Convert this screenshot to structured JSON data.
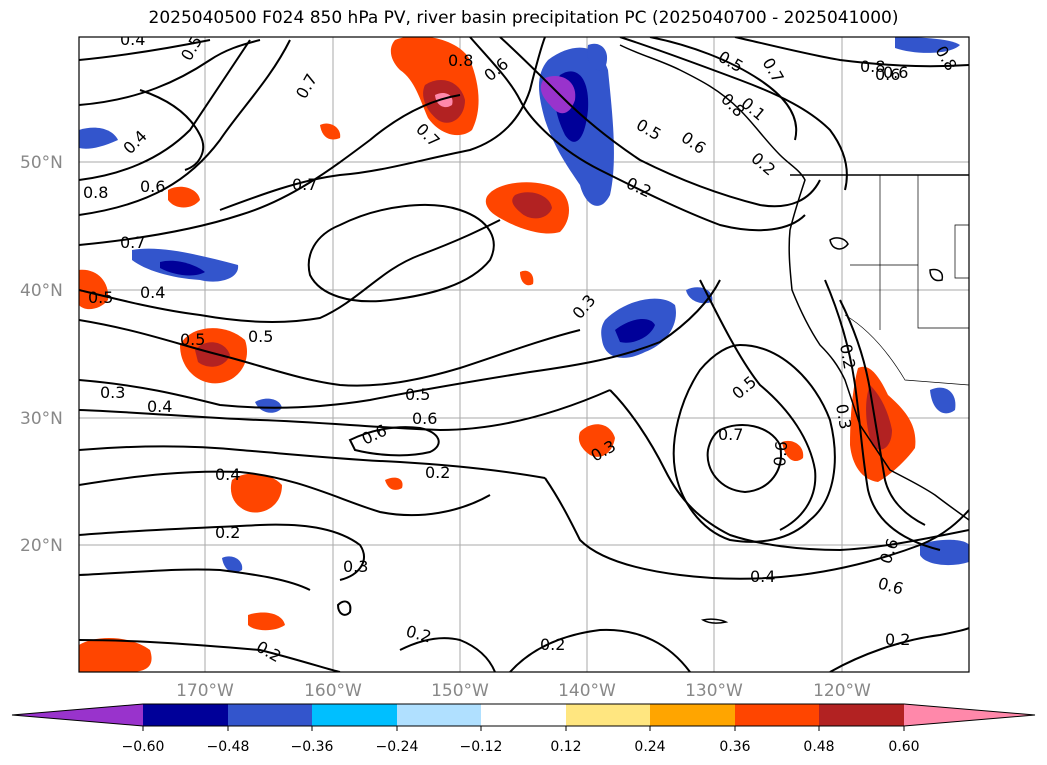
{
  "title": "2025040500 F024 850 hPa PV, river basin precipitation PC (2025040700 - 2025041000)",
  "map": {
    "lat_labels": [
      "50°N",
      "40°N",
      "30°N",
      "20°N"
    ],
    "lon_labels": [
      "170°W",
      "160°W",
      "150°W",
      "140°W",
      "130°W",
      "120°W"
    ],
    "contour_labels": [
      "0.4",
      "0.5",
      "0.4",
      "0.6",
      "0.8",
      "0.7",
      "0.5",
      "0.4",
      "0.5",
      "0.3",
      "0.4",
      "0.8",
      "0.7",
      "0.6",
      "0.7",
      "0.5",
      "0.6",
      "0.6",
      "0.2",
      "0.2",
      "0.3",
      "0.4",
      "0.2",
      "0.3",
      "0.2",
      "0.2",
      "0.5",
      "0.6",
      "0.6",
      "0.5",
      "0.8",
      "0.1",
      "0.7",
      "0.8",
      "0.6",
      "0.5",
      "0.2",
      "0.3",
      "0.2",
      "0.7",
      "0.6",
      "0.5",
      "0.3",
      "0.2",
      "0.7",
      "0.4",
      "0.6",
      "0.2",
      "0.6",
      "0.8"
    ]
  },
  "colorbar": {
    "ticks": [
      "−0.60",
      "−0.48",
      "−0.36",
      "−0.24",
      "−0.12",
      "0.12",
      "0.24",
      "0.36",
      "0.48",
      "0.60"
    ],
    "colors": [
      "#9933cc",
      "#000099",
      "#3355cc",
      "#00bfff",
      "#b0e0ff",
      "#ffffff",
      "#ffe680",
      "#ffa500",
      "#ff4500",
      "#b22222",
      "#ff88aa"
    ]
  }
}
